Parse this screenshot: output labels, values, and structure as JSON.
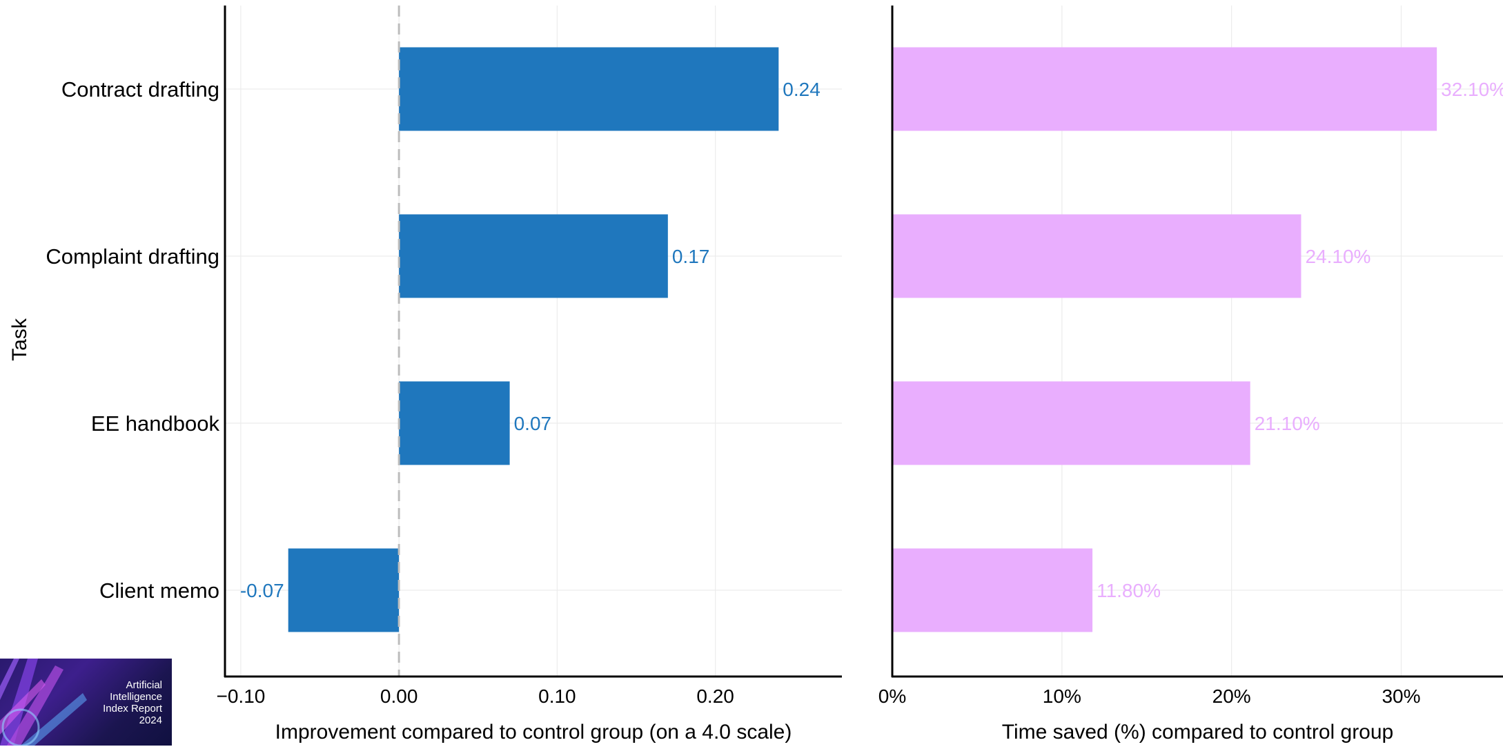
{
  "chart_data": [
    {
      "type": "bar",
      "orientation": "horizontal",
      "categories": [
        "Contract drafting",
        "Complaint drafting",
        "EE handbook",
        "Client memo"
      ],
      "values": [
        0.24,
        0.17,
        0.07,
        -0.07
      ],
      "value_labels": [
        "0.24",
        "0.17",
        "0.07",
        "-0.07"
      ],
      "ylabel": "Task",
      "xlabel": "Improvement compared to control group (on a 4.0 scale)",
      "xlim": [
        -0.11,
        0.28
      ],
      "xticks": [
        -0.1,
        0.0,
        0.1,
        0.2
      ],
      "xtick_labels": [
        "−0.10",
        "0.00",
        "0.10",
        "0.20"
      ],
      "reference_line": 0.0,
      "color": "#1f77bd",
      "grid": true
    },
    {
      "type": "bar",
      "orientation": "horizontal",
      "categories": [
        "Contract drafting",
        "Complaint drafting",
        "EE handbook",
        "Client memo"
      ],
      "values": [
        32.1,
        24.1,
        21.1,
        11.8
      ],
      "value_labels": [
        "32.10%",
        "24.10%",
        "21.10%",
        "11.80%"
      ],
      "xlabel": "Time saved (%) compared to control group",
      "xlim": [
        0,
        36
      ],
      "xticks": [
        0,
        10,
        20,
        30
      ],
      "xtick_labels": [
        "0%",
        "10%",
        "20%",
        "30%"
      ],
      "color": "#e9aefe",
      "grid": true
    }
  ],
  "logo": {
    "lines": [
      "Artificial",
      "Intelligence",
      "Index Report",
      "2024"
    ]
  }
}
